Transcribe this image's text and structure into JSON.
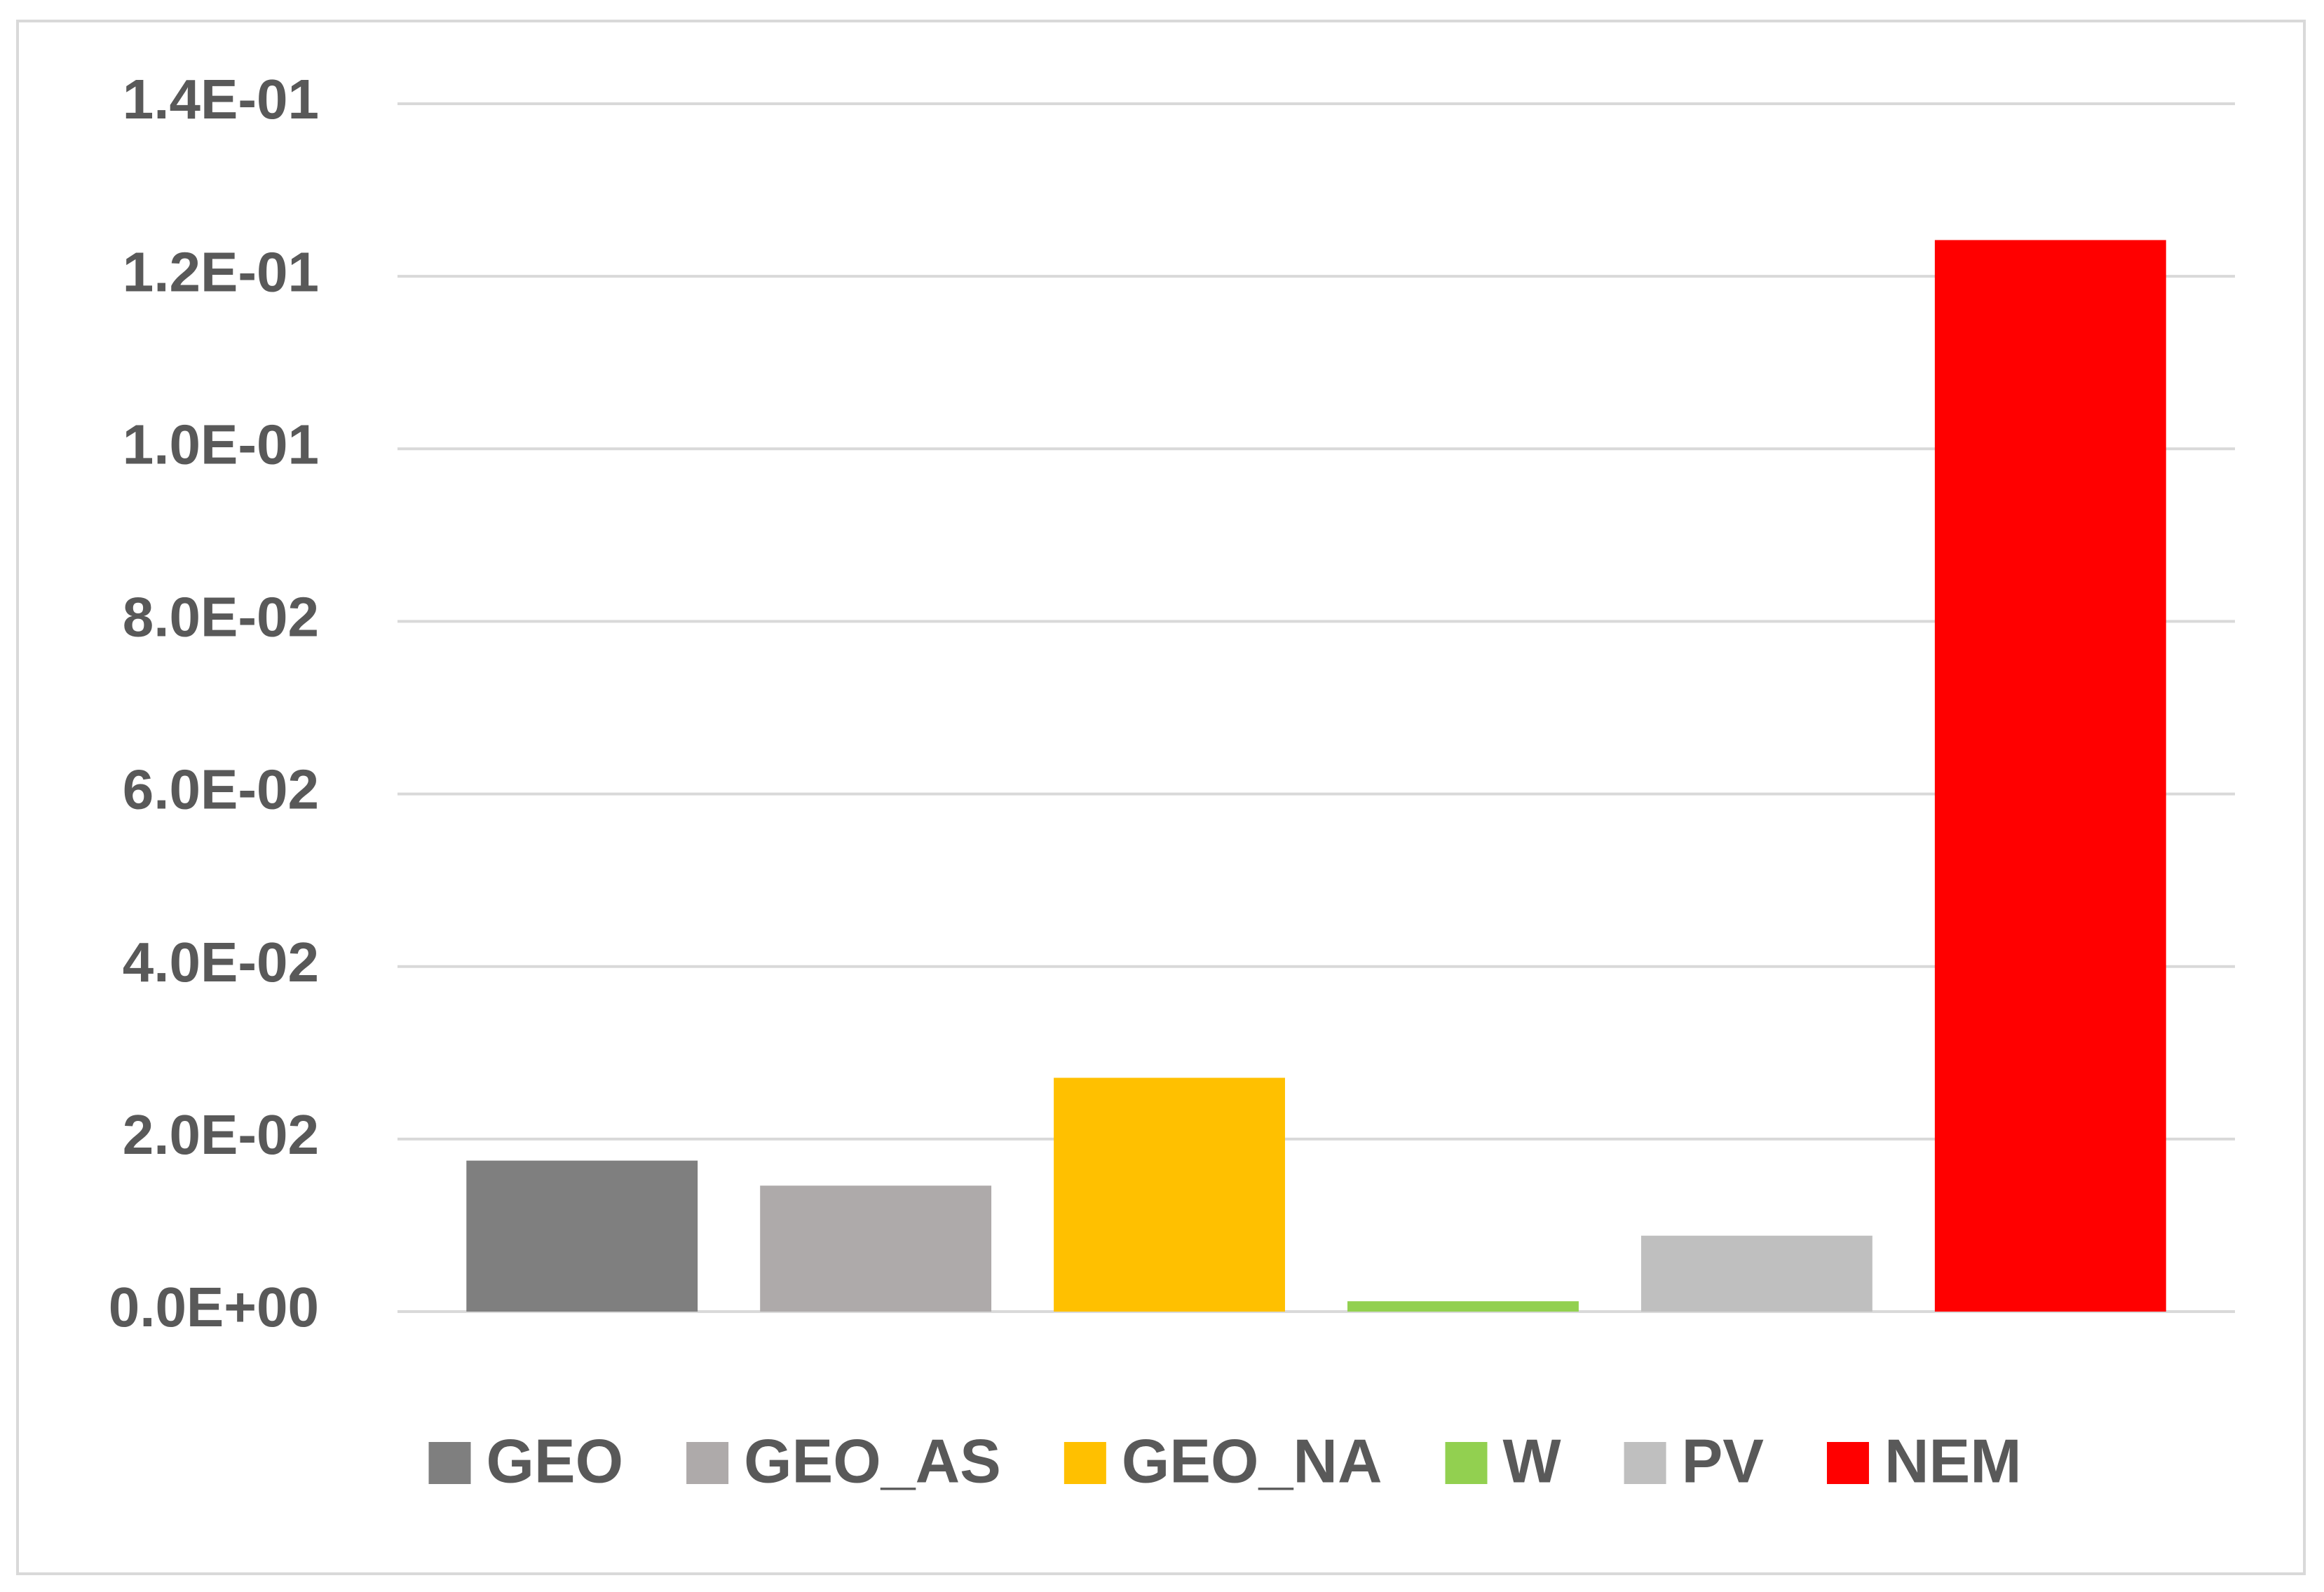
{
  "chart_data": {
    "type": "bar",
    "categories": [
      null
    ],
    "series": [
      {
        "name": "GEO",
        "color": "#7f7f7f",
        "values": [
          0.0175
        ]
      },
      {
        "name": "GEO_AS",
        "color": "#aeaaaa",
        "values": [
          0.0146
        ]
      },
      {
        "name": "GEO_NA",
        "color": "#ffc000",
        "values": [
          0.0271
        ]
      },
      {
        "name": "W",
        "color": "#92d050",
        "values": [
          0.0012
        ]
      },
      {
        "name": "PV",
        "color": "#bfbfbf",
        "values": [
          0.0088
        ]
      },
      {
        "name": "NEM",
        "color": "#ff0000",
        "values": [
          0.1242
        ]
      }
    ],
    "ylim": [
      0,
      0.14
    ],
    "yticks": [
      {
        "value": 0,
        "label": "0.0E+00"
      },
      {
        "value": 0.02,
        "label": "2.0E-02"
      },
      {
        "value": 0.04,
        "label": "4.0E-02"
      },
      {
        "value": 0.06,
        "label": "6.0E-02"
      },
      {
        "value": 0.08,
        "label": "8.0E-02"
      },
      {
        "value": 0.1,
        "label": "1.0E-01"
      },
      {
        "value": 0.12,
        "label": "1.2E-01"
      },
      {
        "value": 0.14,
        "label": "1.4E-01"
      }
    ],
    "grid": true,
    "legend": "bottom"
  }
}
